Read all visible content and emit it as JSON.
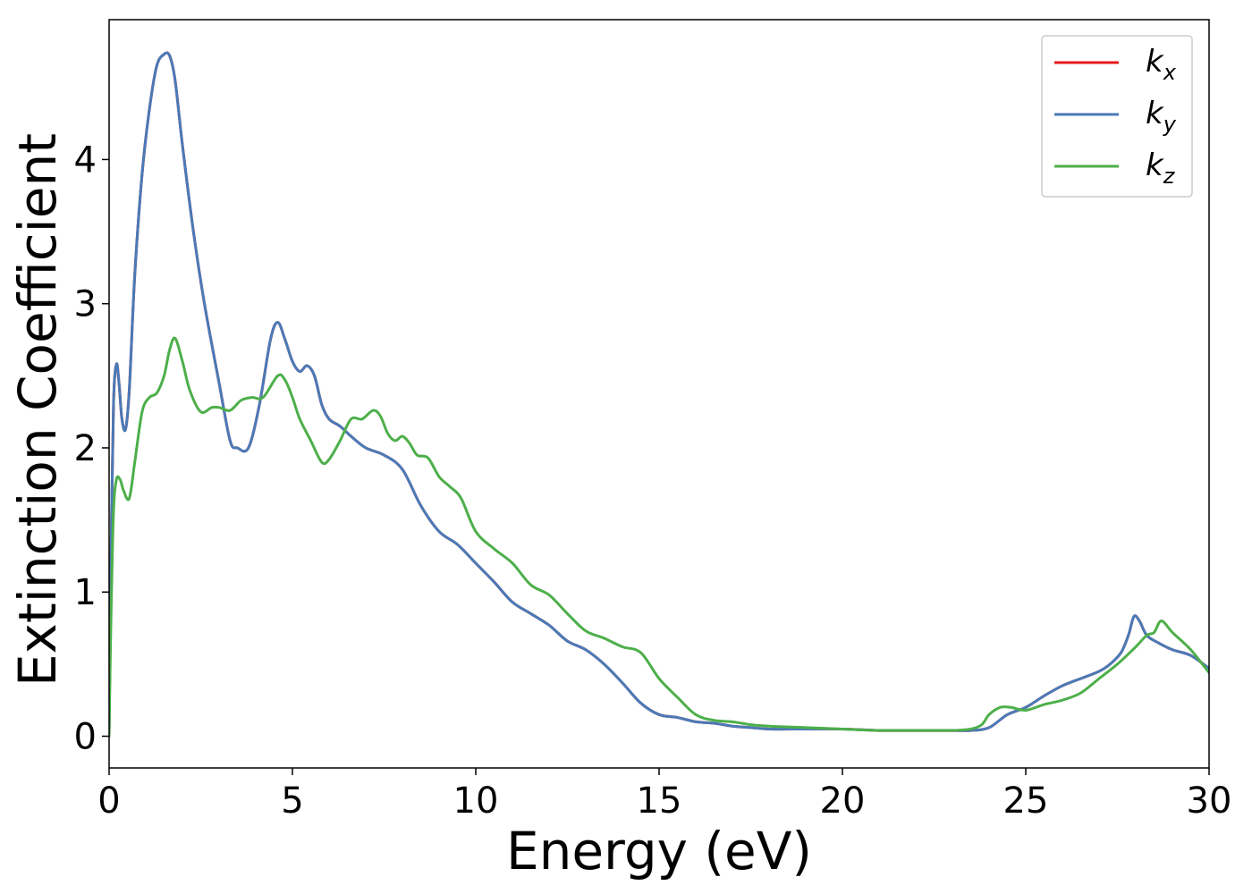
{
  "chart_data": {
    "type": "line",
    "title": "",
    "xlabel": "Energy (eV)",
    "ylabel": "Extinction Coefficient",
    "xlim": [
      0,
      30
    ],
    "ylim": [
      -0.22,
      4.97
    ],
    "xticks": [
      0,
      5,
      10,
      15,
      20,
      25,
      30
    ],
    "yticks": [
      0,
      1,
      2,
      3,
      4
    ],
    "grid": false,
    "legend_position": "top-right",
    "series": [
      {
        "name": "k_x",
        "label_base": "k",
        "label_sub": "x",
        "color": "#e41a1c",
        "x": [
          0,
          0.05,
          0.12,
          0.2,
          0.27,
          0.35,
          0.45,
          0.55,
          0.7,
          0.9,
          1.1,
          1.3,
          1.5,
          1.65,
          1.8,
          2.0,
          2.3,
          2.6,
          3.0,
          3.3,
          3.5,
          3.8,
          4.1,
          4.4,
          4.6,
          4.8,
          5.0,
          5.2,
          5.4,
          5.6,
          5.8,
          6.0,
          6.3,
          6.6,
          7.0,
          7.5,
          8.0,
          8.5,
          9.0,
          9.5,
          10.0,
          10.5,
          11.0,
          11.5,
          12.0,
          12.5,
          13.0,
          13.5,
          14.0,
          14.5,
          15.0,
          15.5,
          16.0,
          16.5,
          17.0,
          17.5,
          18.0,
          19.0,
          20.0,
          21.0,
          22.0,
          23.0,
          23.5,
          24.0,
          24.5,
          25.0,
          25.5,
          26.0,
          26.5,
          27.0,
          27.3,
          27.6,
          27.8,
          27.95,
          28.1,
          28.3,
          28.6,
          29.0,
          29.5,
          30.0
        ],
        "y": [
          0.0,
          1.2,
          2.3,
          2.58,
          2.45,
          2.2,
          2.13,
          2.4,
          3.2,
          3.9,
          4.35,
          4.65,
          4.73,
          4.72,
          4.55,
          4.1,
          3.5,
          3.0,
          2.45,
          2.05,
          2.0,
          2.0,
          2.3,
          2.75,
          2.87,
          2.75,
          2.6,
          2.53,
          2.57,
          2.5,
          2.3,
          2.2,
          2.15,
          2.08,
          2.0,
          1.95,
          1.85,
          1.6,
          1.42,
          1.33,
          1.2,
          1.07,
          0.93,
          0.85,
          0.77,
          0.66,
          0.6,
          0.5,
          0.37,
          0.23,
          0.15,
          0.13,
          0.1,
          0.09,
          0.07,
          0.06,
          0.05,
          0.05,
          0.05,
          0.04,
          0.04,
          0.04,
          0.04,
          0.06,
          0.15,
          0.2,
          0.28,
          0.35,
          0.4,
          0.45,
          0.5,
          0.58,
          0.7,
          0.83,
          0.8,
          0.7,
          0.65,
          0.6,
          0.56,
          0.47
        ]
      },
      {
        "name": "k_y",
        "label_base": "k",
        "label_sub": "y",
        "color": "#4a7ab7",
        "x": [
          0,
          0.05,
          0.12,
          0.2,
          0.27,
          0.35,
          0.45,
          0.55,
          0.7,
          0.9,
          1.1,
          1.3,
          1.5,
          1.65,
          1.8,
          2.0,
          2.3,
          2.6,
          3.0,
          3.3,
          3.5,
          3.8,
          4.1,
          4.4,
          4.6,
          4.8,
          5.0,
          5.2,
          5.4,
          5.6,
          5.8,
          6.0,
          6.3,
          6.6,
          7.0,
          7.5,
          8.0,
          8.5,
          9.0,
          9.5,
          10.0,
          10.5,
          11.0,
          11.5,
          12.0,
          12.5,
          13.0,
          13.5,
          14.0,
          14.5,
          15.0,
          15.5,
          16.0,
          16.5,
          17.0,
          17.5,
          18.0,
          19.0,
          20.0,
          21.0,
          22.0,
          23.0,
          23.5,
          24.0,
          24.5,
          25.0,
          25.5,
          26.0,
          26.5,
          27.0,
          27.3,
          27.6,
          27.8,
          27.95,
          28.1,
          28.3,
          28.6,
          29.0,
          29.5,
          30.0
        ],
        "y": [
          0.0,
          1.2,
          2.3,
          2.58,
          2.45,
          2.2,
          2.13,
          2.4,
          3.2,
          3.9,
          4.35,
          4.65,
          4.73,
          4.72,
          4.55,
          4.1,
          3.5,
          3.0,
          2.45,
          2.05,
          2.0,
          2.0,
          2.3,
          2.75,
          2.87,
          2.75,
          2.6,
          2.53,
          2.57,
          2.5,
          2.3,
          2.2,
          2.15,
          2.08,
          2.0,
          1.95,
          1.85,
          1.6,
          1.42,
          1.33,
          1.2,
          1.07,
          0.93,
          0.85,
          0.77,
          0.66,
          0.6,
          0.5,
          0.37,
          0.23,
          0.15,
          0.13,
          0.1,
          0.09,
          0.07,
          0.06,
          0.05,
          0.05,
          0.05,
          0.04,
          0.04,
          0.04,
          0.04,
          0.06,
          0.15,
          0.2,
          0.28,
          0.35,
          0.4,
          0.45,
          0.5,
          0.58,
          0.7,
          0.83,
          0.8,
          0.7,
          0.65,
          0.6,
          0.56,
          0.47
        ]
      },
      {
        "name": "k_z",
        "label_base": "k",
        "label_sub": "z",
        "color": "#4daf4a",
        "x": [
          0,
          0.05,
          0.12,
          0.2,
          0.3,
          0.4,
          0.55,
          0.7,
          0.9,
          1.1,
          1.3,
          1.5,
          1.65,
          1.8,
          2.0,
          2.2,
          2.5,
          2.8,
          3.0,
          3.3,
          3.6,
          3.9,
          4.2,
          4.6,
          4.8,
          5.0,
          5.2,
          5.5,
          5.8,
          6.0,
          6.3,
          6.6,
          6.9,
          7.2,
          7.4,
          7.6,
          7.8,
          8.0,
          8.2,
          8.4,
          8.7,
          9.0,
          9.3,
          9.6,
          10.0,
          10.5,
          11.0,
          11.5,
          12.0,
          12.5,
          13.0,
          13.5,
          14.0,
          14.5,
          15.0,
          15.5,
          16.0,
          16.5,
          17.0,
          17.5,
          18.0,
          19.0,
          20.0,
          21.0,
          22.0,
          23.0,
          23.5,
          23.8,
          24.0,
          24.3,
          24.6,
          25.0,
          25.5,
          26.0,
          26.5,
          27.0,
          27.5,
          28.0,
          28.3,
          28.5,
          28.7,
          29.0,
          29.5,
          30.0
        ],
        "y": [
          0.0,
          0.8,
          1.55,
          1.78,
          1.78,
          1.7,
          1.65,
          1.9,
          2.25,
          2.35,
          2.38,
          2.5,
          2.68,
          2.76,
          2.6,
          2.4,
          2.25,
          2.28,
          2.28,
          2.26,
          2.33,
          2.35,
          2.35,
          2.5,
          2.47,
          2.35,
          2.2,
          2.05,
          1.9,
          1.92,
          2.05,
          2.2,
          2.2,
          2.26,
          2.22,
          2.1,
          2.05,
          2.08,
          2.03,
          1.95,
          1.93,
          1.8,
          1.73,
          1.65,
          1.42,
          1.3,
          1.2,
          1.05,
          0.98,
          0.85,
          0.73,
          0.68,
          0.62,
          0.58,
          0.4,
          0.27,
          0.15,
          0.11,
          0.1,
          0.08,
          0.07,
          0.06,
          0.05,
          0.04,
          0.04,
          0.04,
          0.05,
          0.08,
          0.15,
          0.2,
          0.2,
          0.18,
          0.22,
          0.25,
          0.3,
          0.4,
          0.5,
          0.62,
          0.7,
          0.72,
          0.8,
          0.72,
          0.6,
          0.44
        ]
      }
    ]
  }
}
